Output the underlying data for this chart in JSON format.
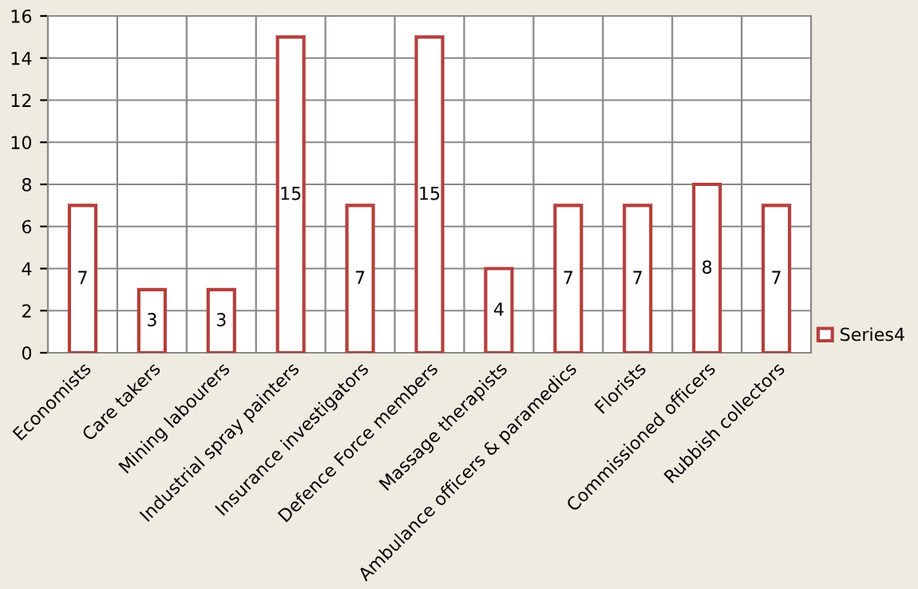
{
  "chart_data": {
    "type": "bar",
    "categories": [
      "Economists",
      "Care takers",
      "Mining labourers",
      "Industrial spray painters",
      "Insurance investigators",
      "Defence Force members",
      "Massage therapists",
      "Ambulance officers & paramedics",
      "Florists",
      "Commissioned officers",
      "Rubbish collectors"
    ],
    "series": [
      {
        "name": "Series4",
        "color": "#b5403c",
        "values": [
          7,
          3,
          3,
          15,
          7,
          15,
          4,
          7,
          7,
          8,
          7
        ]
      }
    ],
    "ylim": [
      0,
      16
    ],
    "yticks": [
      0,
      2,
      4,
      6,
      8,
      10,
      12,
      14,
      16
    ],
    "grid": true,
    "legend": "right",
    "data_labels": true
  }
}
